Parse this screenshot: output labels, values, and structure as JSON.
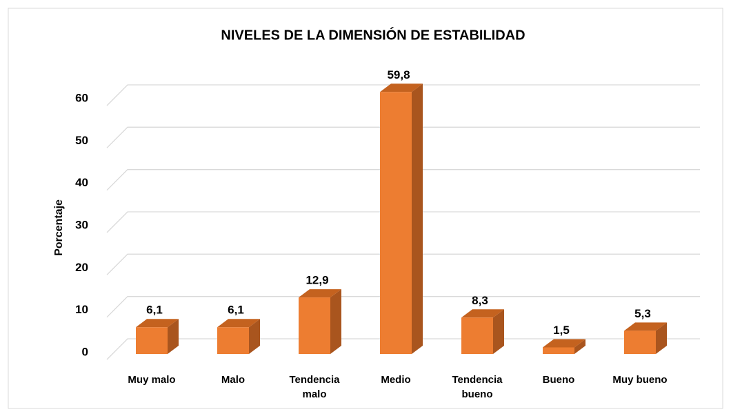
{
  "chart_data": {
    "type": "bar3d",
    "title": "NIVELES DE LA DIMENSIÓN DE ESTABILIDAD",
    "y_label": "Porcentaje",
    "categories": [
      "Muy malo",
      "Malo",
      "Tendencia malo",
      "Medio",
      "Tendencia bueno",
      "Bueno",
      "Muy bueno"
    ],
    "values": [
      6.1,
      6.1,
      12.9,
      59.8,
      8.3,
      1.5,
      5.3
    ],
    "value_labels": [
      "6,1",
      "6,1",
      "12,9",
      "59,8",
      "8,3",
      "1,5",
      "5,3"
    ],
    "color": "#ed7d31",
    "ylim": [
      0,
      60
    ],
    "yticks": [
      0,
      10,
      20,
      30,
      40,
      50,
      60
    ],
    "grid": true
  }
}
